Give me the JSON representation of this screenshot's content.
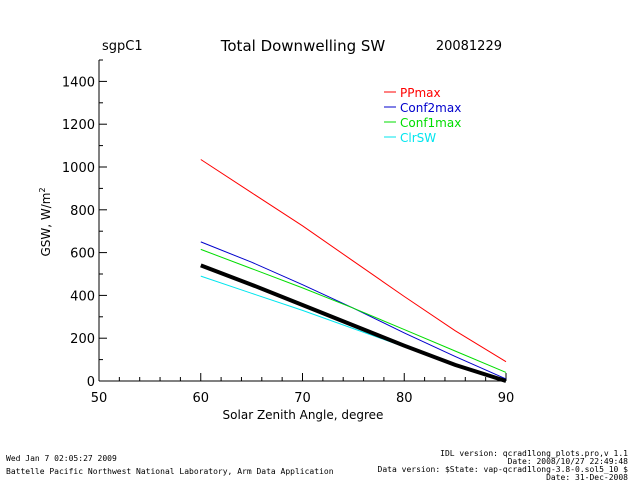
{
  "header": {
    "site": "sgpC1",
    "date": "20081229"
  },
  "footer": {
    "run_time": "Wed Jan  7 02:05:27 2009",
    "organization": "Battelle Pacific Northwest National Laboratory, Arm Data Application",
    "right_lines": [
      "IDL version: qcrad1long_plots.pro,v 1.1",
      "Date: 2008/10/27 22:49:48",
      "Data version: $State: vap-qcrad1long-3.8-0.sol5_10 $",
      "Date: 31-Dec-2008"
    ]
  },
  "colors": {
    "PPmax": "#ff0000",
    "Conf2max": "#0000cc",
    "Conf1max": "#00dd00",
    "ClrSW": "#00e5ee",
    "measured": "#000000"
  },
  "chart_data": {
    "type": "line",
    "title": "Total Downwelling SW",
    "xlabel": "Solar Zenith Angle, degree",
    "ylabel_main": "GSW, W/m",
    "ylabel_sup": "2",
    "xlim": [
      50,
      90
    ],
    "ylim": [
      0,
      1500
    ],
    "xticks": [
      50,
      60,
      70,
      80,
      90
    ],
    "yticks": [
      0,
      200,
      400,
      600,
      800,
      1000,
      1200,
      1400
    ],
    "grid": false,
    "legend_position": "top-right",
    "series": [
      {
        "name": "PPmax",
        "x": [
          60,
          65,
          70,
          75,
          80,
          85,
          90
        ],
        "y": [
          1035,
          880,
          725,
          560,
          395,
          235,
          90
        ]
      },
      {
        "name": "Conf2max",
        "x": [
          60,
          65,
          70,
          75,
          80,
          85,
          90
        ],
        "y": [
          650,
          555,
          450,
          340,
          225,
          115,
          10
        ]
      },
      {
        "name": "Conf1max",
        "x": [
          60,
          65,
          70,
          75,
          80,
          85,
          90
        ],
        "y": [
          615,
          525,
          435,
          340,
          240,
          140,
          40
        ]
      },
      {
        "name": "ClrSW",
        "x": [
          60,
          65,
          70,
          75,
          80,
          85,
          90
        ],
        "y": [
          490,
          410,
          330,
          245,
          160,
          75,
          0
        ]
      },
      {
        "name": "",
        "x": [
          60,
          65,
          70,
          75,
          80,
          85,
          90
        ],
        "y": [
          540,
          450,
          355,
          260,
          165,
          75,
          0
        ]
      }
    ]
  }
}
